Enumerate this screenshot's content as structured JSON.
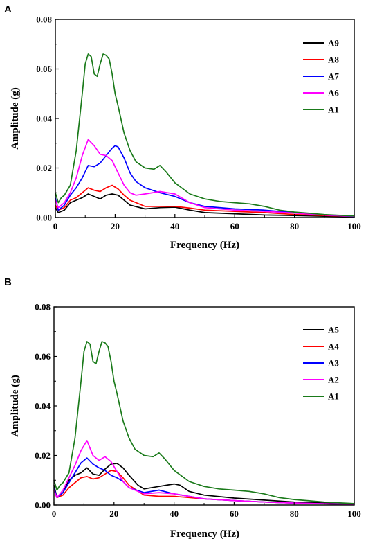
{
  "chart_data": [
    {
      "panel": "A",
      "type": "line",
      "title": "",
      "xlabel": "Frequency  (Hz)",
      "ylabel": "Amplitude  (g)",
      "xlim": [
        0,
        100
      ],
      "ylim": [
        0,
        0.08
      ],
      "xticks": [
        "0",
        "20",
        "40",
        "60",
        "80",
        "100"
      ],
      "yticks": [
        "0.00",
        "0.02",
        "0.04",
        "0.06",
        "0.08"
      ],
      "grid": false,
      "legend_position": "top-right",
      "series": [
        {
          "name": "A9",
          "color": "#000000",
          "x": [
            0,
            1,
            3,
            5,
            7,
            9,
            11,
            13,
            15,
            17,
            19,
            21,
            23,
            25,
            30,
            35,
            40,
            45,
            50,
            60,
            70,
            80,
            90,
            100
          ],
          "values": [
            0.004,
            0.002,
            0.003,
            0.006,
            0.007,
            0.008,
            0.0095,
            0.0085,
            0.0075,
            0.009,
            0.0095,
            0.009,
            0.007,
            0.005,
            0.0035,
            0.004,
            0.0042,
            0.003,
            0.002,
            0.0015,
            0.001,
            0.0008,
            0.0005,
            0.0003
          ]
        },
        {
          "name": "A8",
          "color": "#ff0000",
          "x": [
            0,
            1,
            3,
            5,
            7,
            9,
            11,
            13,
            15,
            17,
            19,
            21,
            23,
            25,
            30,
            35,
            40,
            45,
            50,
            60,
            70,
            80,
            90,
            100
          ],
          "values": [
            0.005,
            0.003,
            0.004,
            0.007,
            0.008,
            0.01,
            0.012,
            0.011,
            0.0105,
            0.012,
            0.013,
            0.0115,
            0.009,
            0.007,
            0.0045,
            0.0045,
            0.0045,
            0.0038,
            0.003,
            0.0025,
            0.002,
            0.0012,
            0.0008,
            0.0004
          ]
        },
        {
          "name": "A7",
          "color": "#0000ff",
          "x": [
            0,
            1,
            3,
            5,
            7,
            9,
            11,
            13,
            15,
            17,
            19,
            20,
            21,
            23,
            25,
            27,
            30,
            35,
            40,
            45,
            50,
            60,
            70,
            80,
            90,
            100
          ],
          "values": [
            0.008,
            0.003,
            0.005,
            0.009,
            0.012,
            0.016,
            0.021,
            0.0205,
            0.022,
            0.025,
            0.028,
            0.029,
            0.0285,
            0.024,
            0.018,
            0.0145,
            0.012,
            0.01,
            0.0085,
            0.006,
            0.0045,
            0.0035,
            0.003,
            0.002,
            0.001,
            0.0004
          ]
        },
        {
          "name": "A6",
          "color": "#ff00ff",
          "x": [
            0,
            1,
            3,
            5,
            7,
            9,
            11,
            13,
            15,
            17,
            19,
            21,
            23,
            25,
            27,
            30,
            35,
            40,
            45,
            50,
            60,
            70,
            80,
            90,
            100
          ],
          "values": [
            0.007,
            0.004,
            0.006,
            0.01,
            0.016,
            0.025,
            0.0315,
            0.029,
            0.0255,
            0.025,
            0.023,
            0.018,
            0.013,
            0.01,
            0.009,
            0.0095,
            0.0105,
            0.0095,
            0.006,
            0.004,
            0.003,
            0.0025,
            0.0018,
            0.001,
            0.0005
          ]
        },
        {
          "name": "A1",
          "color": "#1a7a1a",
          "x": [
            0,
            1,
            2,
            3,
            5,
            7,
            9,
            10,
            11,
            12,
            13,
            14,
            15,
            16,
            17,
            18,
            19,
            20,
            21,
            23,
            25,
            27,
            30,
            33,
            35,
            37,
            40,
            45,
            50,
            55,
            60,
            65,
            70,
            75,
            80,
            85,
            90,
            100
          ],
          "values": [
            0.01,
            0.006,
            0.008,
            0.009,
            0.013,
            0.027,
            0.05,
            0.062,
            0.066,
            0.065,
            0.058,
            0.057,
            0.062,
            0.066,
            0.0655,
            0.064,
            0.058,
            0.05,
            0.045,
            0.034,
            0.027,
            0.0225,
            0.02,
            0.0195,
            0.021,
            0.0185,
            0.014,
            0.0095,
            0.0075,
            0.0065,
            0.006,
            0.0055,
            0.0045,
            0.003,
            0.0022,
            0.0017,
            0.0012,
            0.0006
          ]
        }
      ]
    },
    {
      "panel": "B",
      "type": "line",
      "title": "",
      "xlabel": "Frequency  (Hz)",
      "ylabel": "Amplitude  (g)",
      "xlim": [
        0,
        100
      ],
      "ylim": [
        0,
        0.08
      ],
      "xticks": [
        "0",
        "20",
        "40",
        "60",
        "80",
        "100"
      ],
      "yticks": [
        "0.00",
        "0.02",
        "0.04",
        "0.06",
        "0.08"
      ],
      "grid": false,
      "legend_position": "top-right",
      "series": [
        {
          "name": "A5",
          "color": "#000000",
          "x": [
            0,
            1,
            3,
            5,
            7,
            9,
            11,
            13,
            15,
            17,
            19,
            21,
            23,
            25,
            28,
            30,
            35,
            40,
            42,
            45,
            50,
            60,
            70,
            80,
            90,
            100
          ],
          "values": [
            0.008,
            0.003,
            0.005,
            0.01,
            0.012,
            0.013,
            0.015,
            0.0125,
            0.012,
            0.0145,
            0.0165,
            0.0168,
            0.015,
            0.012,
            0.008,
            0.0065,
            0.0075,
            0.0085,
            0.008,
            0.0055,
            0.004,
            0.0028,
            0.002,
            0.0012,
            0.0008,
            0.0004
          ]
        },
        {
          "name": "A4",
          "color": "#ff0000",
          "x": [
            0,
            1,
            3,
            5,
            7,
            9,
            11,
            13,
            15,
            17,
            19,
            21,
            23,
            25,
            30,
            35,
            40,
            45,
            50,
            60,
            70,
            80,
            90,
            100
          ],
          "values": [
            0.006,
            0.003,
            0.004,
            0.007,
            0.009,
            0.011,
            0.0115,
            0.0105,
            0.011,
            0.0125,
            0.014,
            0.0135,
            0.011,
            0.008,
            0.004,
            0.0035,
            0.0035,
            0.003,
            0.0025,
            0.0018,
            0.0012,
            0.0008,
            0.0005,
            0.0003
          ]
        },
        {
          "name": "A3",
          "color": "#0000ff",
          "x": [
            0,
            1,
            3,
            5,
            7,
            9,
            11,
            13,
            15,
            17,
            19,
            21,
            23,
            25,
            30,
            35,
            40,
            45,
            50,
            60,
            70,
            80,
            90,
            100
          ],
          "values": [
            0.007,
            0.003,
            0.005,
            0.009,
            0.013,
            0.017,
            0.019,
            0.0165,
            0.015,
            0.014,
            0.012,
            0.011,
            0.0095,
            0.007,
            0.005,
            0.006,
            0.0045,
            0.0035,
            0.0025,
            0.0018,
            0.0012,
            0.0008,
            0.0005,
            0.0003
          ]
        },
        {
          "name": "A2",
          "color": "#ff00ff",
          "x": [
            0,
            1,
            3,
            5,
            7,
            9,
            11,
            13,
            15,
            17,
            19,
            21,
            23,
            25,
            30,
            35,
            40,
            45,
            50,
            60,
            70,
            80,
            90,
            100
          ],
          "values": [
            0.006,
            0.003,
            0.006,
            0.011,
            0.016,
            0.022,
            0.026,
            0.02,
            0.018,
            0.0195,
            0.0175,
            0.0135,
            0.0095,
            0.007,
            0.0045,
            0.005,
            0.0045,
            0.0035,
            0.0025,
            0.0018,
            0.0012,
            0.0008,
            0.0005,
            0.0003
          ]
        },
        {
          "name": "A1",
          "color": "#1a7a1a",
          "x": [
            0,
            1,
            2,
            3,
            5,
            7,
            9,
            10,
            11,
            12,
            13,
            14,
            15,
            16,
            17,
            18,
            19,
            20,
            21,
            23,
            25,
            27,
            30,
            33,
            35,
            37,
            40,
            45,
            50,
            55,
            60,
            65,
            70,
            75,
            80,
            85,
            90,
            100
          ],
          "values": [
            0.01,
            0.006,
            0.008,
            0.009,
            0.013,
            0.027,
            0.05,
            0.062,
            0.066,
            0.065,
            0.058,
            0.057,
            0.062,
            0.066,
            0.0655,
            0.064,
            0.058,
            0.05,
            0.045,
            0.034,
            0.027,
            0.0225,
            0.02,
            0.0195,
            0.021,
            0.0185,
            0.014,
            0.0095,
            0.0075,
            0.0065,
            0.006,
            0.0055,
            0.0045,
            0.003,
            0.0022,
            0.0017,
            0.0012,
            0.0006
          ]
        }
      ]
    }
  ]
}
